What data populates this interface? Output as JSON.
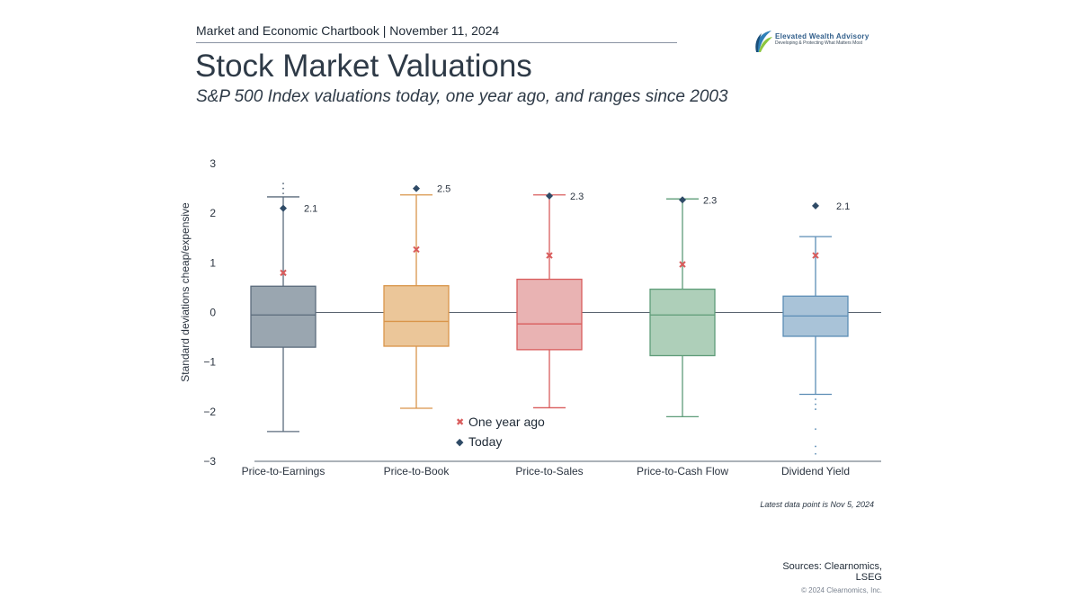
{
  "header": {
    "chartbook_line": "Market and Economic Chartbook | November 11, 2024",
    "title": "Stock Market Valuations",
    "subtitle": "S&P 500 Index valuations today, one year ago, and ranges since 2003"
  },
  "logo": {
    "name": "Elevated Wealth Advisory",
    "tagline": "Developing & Protecting What Matters Most"
  },
  "legend": {
    "one_year_ago": "One year ago",
    "today": "Today",
    "one_year_ago_marker": "✖",
    "today_marker": "◆"
  },
  "chart_data": {
    "type": "box",
    "ylabel": "Standard deviations cheap/expensive",
    "ylim": [
      -3,
      3
    ],
    "yticks": [
      3,
      2,
      1,
      0,
      -1,
      -2,
      -3
    ],
    "ytick_labels": [
      "3",
      "2",
      "1",
      "0",
      "−1",
      "−2",
      "−3"
    ],
    "categories": [
      "Price-to-Earnings",
      "Price-to-Book",
      "Price-to-Sales",
      "Price-to-Cash Flow",
      "Dividend Yield"
    ],
    "boxes": [
      {
        "name": "Price-to-Earnings",
        "color": "#5b6b7c",
        "fill": "#9aa6b0",
        "whisker_low": -2.4,
        "q1": -0.7,
        "median": -0.05,
        "q3": 0.53,
        "whisker_high": 2.33,
        "outliers_high": [
          2.4,
          2.5,
          2.6
        ],
        "outliers_low": [],
        "one_year_ago": 0.8,
        "today": 2.1,
        "today_label": "2.1"
      },
      {
        "name": "Price-to-Book",
        "color": "#d9954a",
        "fill": "#ebc699",
        "whisker_low": -1.93,
        "q1": -0.68,
        "median": -0.18,
        "q3": 0.54,
        "whisker_high": 2.37,
        "outliers_high": [],
        "outliers_low": [],
        "one_year_ago": 1.27,
        "today": 2.5,
        "today_label": "2.5"
      },
      {
        "name": "Price-to-Sales",
        "color": "#d95c5c",
        "fill": "#e9b3b3",
        "whisker_low": -1.92,
        "q1": -0.75,
        "median": -0.23,
        "q3": 0.67,
        "whisker_high": 2.37,
        "outliers_high": [],
        "outliers_low": [],
        "one_year_ago": 1.15,
        "today": 2.35,
        "today_label": "2.3"
      },
      {
        "name": "Price-to-Cash Flow",
        "color": "#5e9c78",
        "fill": "#aecfb9",
        "whisker_low": -2.1,
        "q1": -0.87,
        "median": -0.05,
        "q3": 0.47,
        "whisker_high": 2.29,
        "outliers_high": [],
        "outliers_low": [],
        "one_year_ago": 0.97,
        "today": 2.27,
        "today_label": "2.3"
      },
      {
        "name": "Dividend Yield",
        "color": "#5b8db5",
        "fill": "#a9c3d8",
        "whisker_low": -1.65,
        "q1": -0.48,
        "median": -0.07,
        "q3": 0.33,
        "whisker_high": 1.53,
        "outliers_high": [],
        "outliers_low": [
          -1.75,
          -1.85,
          -1.95,
          -2.35,
          -2.7,
          -2.85
        ],
        "one_year_ago": 1.15,
        "today": 2.15,
        "today_label": "2.1"
      }
    ],
    "legend_placement": "bottom-center"
  },
  "footer": {
    "note": "Latest data point is Nov 5, 2024",
    "sources": "Sources: Clearnomics, LSEG",
    "copyright": "© 2024 Clearnomics, Inc."
  }
}
